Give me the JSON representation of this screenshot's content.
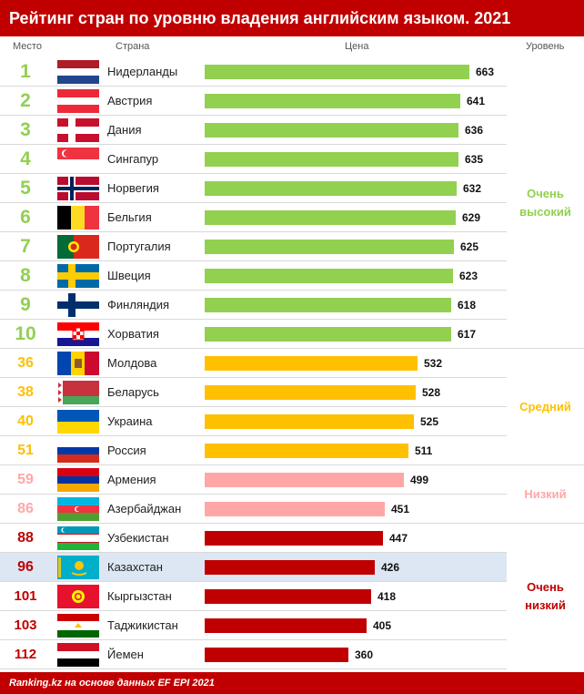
{
  "title": "Рейтинг стран по уровню владения английским языком. 2021",
  "headers": {
    "place": "Место",
    "country": "Страна",
    "price": "Цена",
    "level": "Уровень"
  },
  "footer": "Ranking.kz на основе данных EF EPI 2021",
  "colors": {
    "very_high": "#92d050",
    "medium": "#ffc000",
    "low": "#ffa7a7",
    "very_low": "#c00000",
    "highlight": "#dde7f3"
  },
  "chart_data": {
    "type": "bar",
    "orientation": "horizontal",
    "title": "Рейтинг стран по уровню владения английским языком. 2021",
    "xlabel": "Цена",
    "categories": [
      "Нидерланды",
      "Австрия",
      "Дания",
      "Сингапур",
      "Норвегия",
      "Бельгия",
      "Португалия",
      "Швеция",
      "Финляндия",
      "Хорватия",
      "Молдова",
      "Беларусь",
      "Украина",
      "Россия",
      "Армения",
      "Азербайджан",
      "Узбекистан",
      "Казахстан",
      "Кыргызстан",
      "Таджикистан",
      "Йемен"
    ],
    "values": [
      663,
      641,
      636,
      635,
      632,
      629,
      625,
      623,
      618,
      617,
      532,
      528,
      525,
      511,
      499,
      451,
      447,
      426,
      418,
      405,
      360
    ],
    "xlim": [
      0,
      663
    ]
  },
  "rows": [
    {
      "rank": "1",
      "country": "Нидерланды",
      "value": "663",
      "level": "very_high",
      "flag": "flag-netherlands"
    },
    {
      "rank": "2",
      "country": "Австрия",
      "value": "641",
      "level": "very_high",
      "flag": "flag-austria"
    },
    {
      "rank": "3",
      "country": "Дания",
      "value": "636",
      "level": "very_high",
      "flag": "flag-denmark"
    },
    {
      "rank": "4",
      "country": "Сингапур",
      "value": "635",
      "level": "very_high",
      "flag": "flag-singapore"
    },
    {
      "rank": "5",
      "country": "Норвегия",
      "value": "632",
      "level": "very_high",
      "flag": "flag-norway"
    },
    {
      "rank": "6",
      "country": "Бельгия",
      "value": "629",
      "level": "very_high",
      "flag": "flag-belgium"
    },
    {
      "rank": "7",
      "country": "Португалия",
      "value": "625",
      "level": "very_high",
      "flag": "flag-portugal"
    },
    {
      "rank": "8",
      "country": "Швеция",
      "value": "623",
      "level": "very_high",
      "flag": "flag-sweden"
    },
    {
      "rank": "9",
      "country": "Финляндия",
      "value": "618",
      "level": "very_high",
      "flag": "flag-finland"
    },
    {
      "rank": "10",
      "country": "Хорватия",
      "value": "617",
      "level": "very_high",
      "flag": "flag-croatia"
    },
    {
      "rank": "36",
      "country": "Молдова",
      "value": "532",
      "level": "medium",
      "flag": "flag-moldova"
    },
    {
      "rank": "38",
      "country": "Беларусь",
      "value": "528",
      "level": "medium",
      "flag": "flag-belarus"
    },
    {
      "rank": "40",
      "country": "Украина",
      "value": "525",
      "level": "medium",
      "flag": "flag-ukraine"
    },
    {
      "rank": "51",
      "country": "Россия",
      "value": "511",
      "level": "medium",
      "flag": "flag-russia"
    },
    {
      "rank": "59",
      "country": "Армения",
      "value": "499",
      "level": "low",
      "flag": "flag-armenia"
    },
    {
      "rank": "86",
      "country": "Азербайджан",
      "value": "451",
      "level": "low",
      "flag": "flag-azerbaijan"
    },
    {
      "rank": "88",
      "country": "Узбекистан",
      "value": "447",
      "level": "very_low",
      "flag": "flag-uzbekistan"
    },
    {
      "rank": "96",
      "country": "Казахстан",
      "value": "426",
      "level": "very_low",
      "flag": "flag-kazakhstan",
      "highlight": true
    },
    {
      "rank": "101",
      "country": "Кыргызстан",
      "value": "418",
      "level": "very_low",
      "flag": "flag-kyrgyzstan"
    },
    {
      "rank": "103",
      "country": "Таджикистан",
      "value": "405",
      "level": "very_low",
      "flag": "flag-tajikistan"
    },
    {
      "rank": "112",
      "country": "Йемен",
      "value": "360",
      "level": "very_low",
      "flag": "flag-yemen"
    }
  ],
  "levels": [
    {
      "key": "very_high",
      "label": "Очень\nвысокий"
    },
    {
      "key": "medium",
      "label": "Средний"
    },
    {
      "key": "low",
      "label": "Низкий"
    },
    {
      "key": "very_low",
      "label": "Очень\nнизкий"
    }
  ]
}
